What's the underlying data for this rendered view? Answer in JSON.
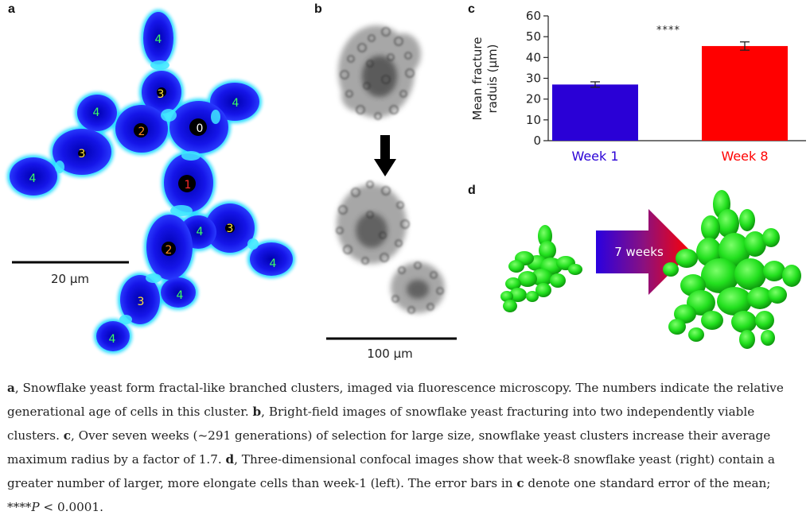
{
  "panels": {
    "a": {
      "letter": "a",
      "scale_bar_label": "20 μm",
      "cell_labels": [
        {
          "text": "0"
        },
        {
          "text": "1"
        },
        {
          "text": "2"
        },
        {
          "text": "2"
        },
        {
          "text": "3"
        },
        {
          "text": "3"
        },
        {
          "text": "3"
        },
        {
          "text": "3"
        },
        {
          "text": "4"
        },
        {
          "text": "4"
        },
        {
          "text": "4"
        },
        {
          "text": "4"
        },
        {
          "text": "4"
        },
        {
          "text": "4"
        },
        {
          "text": "4"
        },
        {
          "text": "4"
        }
      ]
    },
    "b": {
      "letter": "b",
      "scale_bar_label": "100 μm"
    },
    "c": {
      "letter": "c",
      "significance": "****"
    },
    "d": {
      "letter": "d",
      "arrow_label": "7 weeks"
    }
  },
  "chart_data": {
    "type": "bar",
    "categories": [
      "Week 1",
      "Week 8"
    ],
    "values": [
      27,
      45.5
    ],
    "errors": [
      1.3,
      2.0
    ],
    "colors": [
      "#2a00d6",
      "#ff0000"
    ],
    "ylabel": "Mean fracture radius (μm)",
    "ylabel_lines": [
      "Mean fracture",
      "raduis (μm)"
    ],
    "ylim": [
      0,
      60
    ],
    "yticks": [
      0,
      10,
      20,
      30,
      40,
      50,
      60
    ],
    "annotation": "****"
  },
  "caption": {
    "a_letter": "a",
    "a_text": ", Snowflake yeast form fractal-like branched clusters, imaged via fluorescence microscopy. The numbers indicate the relative generational age of cells in this cluster. ",
    "b_letter": "b",
    "b_text": ", Bright-field images of snowflake yeast fracturing into two independently viable clusters. ",
    "c_letter": "c",
    "c_text": ", Over seven weeks (~291 generations) of selection for large size, snowflake yeast clusters increase their average maximum radius by a factor of 1.7. ",
    "d_letter": "d",
    "d_text": ", Three-dimensional confocal images show that week-8 snowflake yeast (right) contain a greater number of larger, more elongate cells than week-1 (left). The error bars in ",
    "c_letter2": "c",
    "tail_1": " denote one standard error of the mean; ****",
    "p_symbol": "P",
    "tail_2": " < 0.0001."
  },
  "colors": {
    "cell_fill": "#1e1ef0",
    "cell_glow": "#19d9ff",
    "bar_week1": "#2a00d6",
    "bar_week8": "#ff0000",
    "yeast_3d": "#22e01e"
  }
}
